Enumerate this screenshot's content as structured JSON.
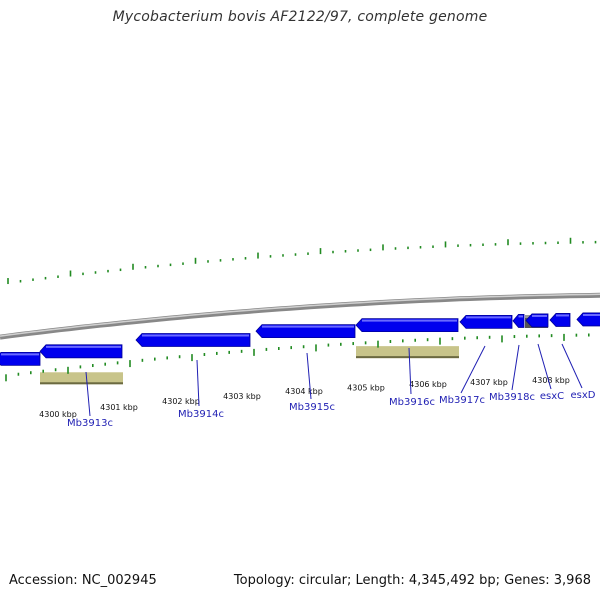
{
  "title": "Mycobacterium bovis AF2122/97, complete genome",
  "footer": {
    "accession": "Accession: NC_002945",
    "summary": "Topology: circular; Length: 4,345,492 bp; Genes: 3,968"
  },
  "colors": {
    "backbone": "#888888",
    "gene": "#0000ee",
    "gene_highlight": "#6a6aff",
    "feature": "#c8c48a",
    "feature_dark": "#6b6940",
    "gray_feature": "#555555",
    "tick": "#228b22",
    "label": "#1f1fb3"
  },
  "scale": {
    "ticks": [
      "4300 kbp",
      "4301 kbp",
      "4302 kbp",
      "4303 kbp",
      "4304 kbp",
      "4305 kbp",
      "4306 kbp",
      "4307 kbp",
      "4308 kbp"
    ]
  },
  "genes": [
    {
      "name": "Mb3913c"
    },
    {
      "name": "Mb3914c"
    },
    {
      "name": "Mb3915c"
    },
    {
      "name": "Mb3916c"
    },
    {
      "name": "Mb3917c"
    },
    {
      "name": "Mb3918c"
    },
    {
      "name": "esxC"
    },
    {
      "name": "esxD"
    }
  ]
}
